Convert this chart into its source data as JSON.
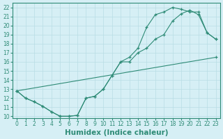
{
  "line1_x": [
    0,
    1,
    2,
    3,
    4,
    5,
    6,
    7,
    8,
    9,
    10,
    11,
    12,
    13,
    14,
    15,
    16,
    17,
    18,
    19,
    20,
    21,
    22,
    23
  ],
  "line1_y": [
    12.8,
    12.0,
    11.6,
    11.1,
    10.5,
    10.0,
    10.0,
    10.1,
    12.0,
    12.2,
    13.0,
    14.5,
    16.0,
    16.0,
    17.0,
    17.5,
    18.5,
    19.0,
    20.5,
    21.3,
    21.7,
    21.2,
    19.2,
    18.5
  ],
  "line2_x": [
    0,
    1,
    2,
    3,
    4,
    5,
    6,
    7,
    8,
    9,
    10,
    11,
    12,
    13,
    14,
    15,
    16,
    17,
    18,
    19,
    20,
    21,
    22,
    23
  ],
  "line2_y": [
    12.8,
    12.0,
    11.6,
    11.1,
    10.5,
    10.0,
    10.0,
    10.1,
    12.0,
    12.2,
    13.0,
    14.5,
    16.0,
    16.5,
    17.5,
    19.8,
    21.2,
    21.5,
    22.0,
    21.8,
    21.5,
    21.5,
    19.2,
    18.5
  ],
  "line3_x": [
    0,
    23
  ],
  "line3_y": [
    12.8,
    16.5
  ],
  "color": "#2e8b76",
  "bg_color": "#d6eff5",
  "grid_color": "#b8dde5",
  "xlabel": "Humidex (Indice chaleur)",
  "xlim": [
    -0.5,
    23.5
  ],
  "ylim": [
    9.8,
    22.5
  ],
  "yticks": [
    10,
    11,
    12,
    13,
    14,
    15,
    16,
    17,
    18,
    19,
    20,
    21,
    22
  ],
  "xticks": [
    0,
    1,
    2,
    3,
    4,
    5,
    6,
    7,
    8,
    9,
    10,
    11,
    12,
    13,
    14,
    15,
    16,
    17,
    18,
    19,
    20,
    21,
    22,
    23
  ],
  "tick_fontsize": 5.5,
  "xlabel_fontsize": 7.5
}
